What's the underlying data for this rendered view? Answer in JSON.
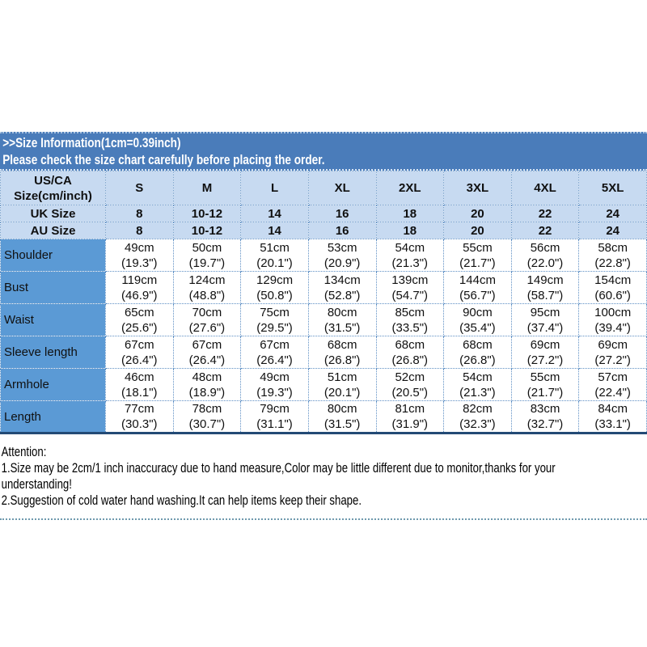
{
  "banner": {
    "title": ">>Size Information(1cm=0.39inch)",
    "subtitle": "Please check the size chart carefully before placing the order."
  },
  "table": {
    "corner": {
      "line1": "US/CA",
      "line2": "Size(cm/inch)"
    },
    "size_headers": [
      "S",
      "M",
      "L",
      "XL",
      "2XL",
      "3XL",
      "4XL",
      "5XL"
    ],
    "size_rows": [
      {
        "label": "UK Size",
        "values": [
          "8",
          "10-12",
          "14",
          "16",
          "18",
          "20",
          "22",
          "24"
        ]
      },
      {
        "label": "AU Size",
        "values": [
          "8",
          "10-12",
          "14",
          "16",
          "18",
          "20",
          "22",
          "24"
        ]
      }
    ],
    "measurement_rows": [
      {
        "label": "Shoulder",
        "values": [
          {
            "cm": "49cm",
            "inch": "(19.3\")"
          },
          {
            "cm": "50cm",
            "inch": "(19.7\")"
          },
          {
            "cm": "51cm",
            "inch": "(20.1\")"
          },
          {
            "cm": "53cm",
            "inch": "(20.9\")"
          },
          {
            "cm": "54cm",
            "inch": "(21.3\")"
          },
          {
            "cm": "55cm",
            "inch": "(21.7\")"
          },
          {
            "cm": "56cm",
            "inch": "(22.0\")"
          },
          {
            "cm": "58cm",
            "inch": "(22.8\")"
          }
        ]
      },
      {
        "label": "Bust",
        "values": [
          {
            "cm": "119cm",
            "inch": "(46.9\")"
          },
          {
            "cm": "124cm",
            "inch": "(48.8\")"
          },
          {
            "cm": "129cm",
            "inch": "(50.8\")"
          },
          {
            "cm": "134cm",
            "inch": "(52.8\")"
          },
          {
            "cm": "139cm",
            "inch": "(54.7\")"
          },
          {
            "cm": "144cm",
            "inch": "(56.7\")"
          },
          {
            "cm": "149cm",
            "inch": "(58.7\")"
          },
          {
            "cm": "154cm",
            "inch": "(60.6\")"
          }
        ]
      },
      {
        "label": "Waist",
        "values": [
          {
            "cm": "65cm",
            "inch": "(25.6\")"
          },
          {
            "cm": "70cm",
            "inch": "(27.6\")"
          },
          {
            "cm": "75cm",
            "inch": "(29.5\")"
          },
          {
            "cm": "80cm",
            "inch": "(31.5\")"
          },
          {
            "cm": "85cm",
            "inch": "(33.5\")"
          },
          {
            "cm": "90cm",
            "inch": "(35.4\")"
          },
          {
            "cm": "95cm",
            "inch": "(37.4\")"
          },
          {
            "cm": "100cm",
            "inch": "(39.4\")"
          }
        ]
      },
      {
        "label": "Sleeve length",
        "values": [
          {
            "cm": "67cm",
            "inch": "(26.4\")"
          },
          {
            "cm": "67cm",
            "inch": "(26.4\")"
          },
          {
            "cm": "67cm",
            "inch": "(26.4\")"
          },
          {
            "cm": "68cm",
            "inch": "(26.8\")"
          },
          {
            "cm": "68cm",
            "inch": "(26.8\")"
          },
          {
            "cm": "68cm",
            "inch": "(26.8\")"
          },
          {
            "cm": "69cm",
            "inch": "(27.2\")"
          },
          {
            "cm": "69cm",
            "inch": "(27.2\")"
          }
        ]
      },
      {
        "label": "Armhole",
        "values": [
          {
            "cm": "46cm",
            "inch": "(18.1\")"
          },
          {
            "cm": "48cm",
            "inch": "(18.9\")"
          },
          {
            "cm": "49cm",
            "inch": "(19.3\")"
          },
          {
            "cm": "51cm",
            "inch": "(20.1\")"
          },
          {
            "cm": "52cm",
            "inch": "(20.5\")"
          },
          {
            "cm": "54cm",
            "inch": "(21.3\")"
          },
          {
            "cm": "55cm",
            "inch": "(21.7\")"
          },
          {
            "cm": "57cm",
            "inch": "(22.4\")"
          }
        ]
      },
      {
        "label": "Length",
        "values": [
          {
            "cm": "77cm",
            "inch": "(30.3\")"
          },
          {
            "cm": "78cm",
            "inch": "(30.7\")"
          },
          {
            "cm": "79cm",
            "inch": "(31.1\")"
          },
          {
            "cm": "80cm",
            "inch": "(31.5\")"
          },
          {
            "cm": "81cm",
            "inch": "(31.9\")"
          },
          {
            "cm": "82cm",
            "inch": "(32.3\")"
          },
          {
            "cm": "83cm",
            "inch": "(32.7\")"
          },
          {
            "cm": "84cm",
            "inch": "(33.1\")"
          }
        ]
      }
    ]
  },
  "attention": {
    "title": "Attention:",
    "note1_line1": "1.Size may be 2cm/1 inch inaccuracy due to hand measure,Color may be little different due to monitor,thanks for your",
    "note1_line2": "understanding!",
    "note2": "2.Suggestion of cold water hand washing.It can help items keep their shape."
  },
  "colors": {
    "banner_bg": "#4a7cba",
    "header_row_bg": "#c7daf1",
    "label_column_bg": "#5b9ad5",
    "grid_dotted": "#5e8fc4",
    "table_bottom_border": "#234a75"
  }
}
